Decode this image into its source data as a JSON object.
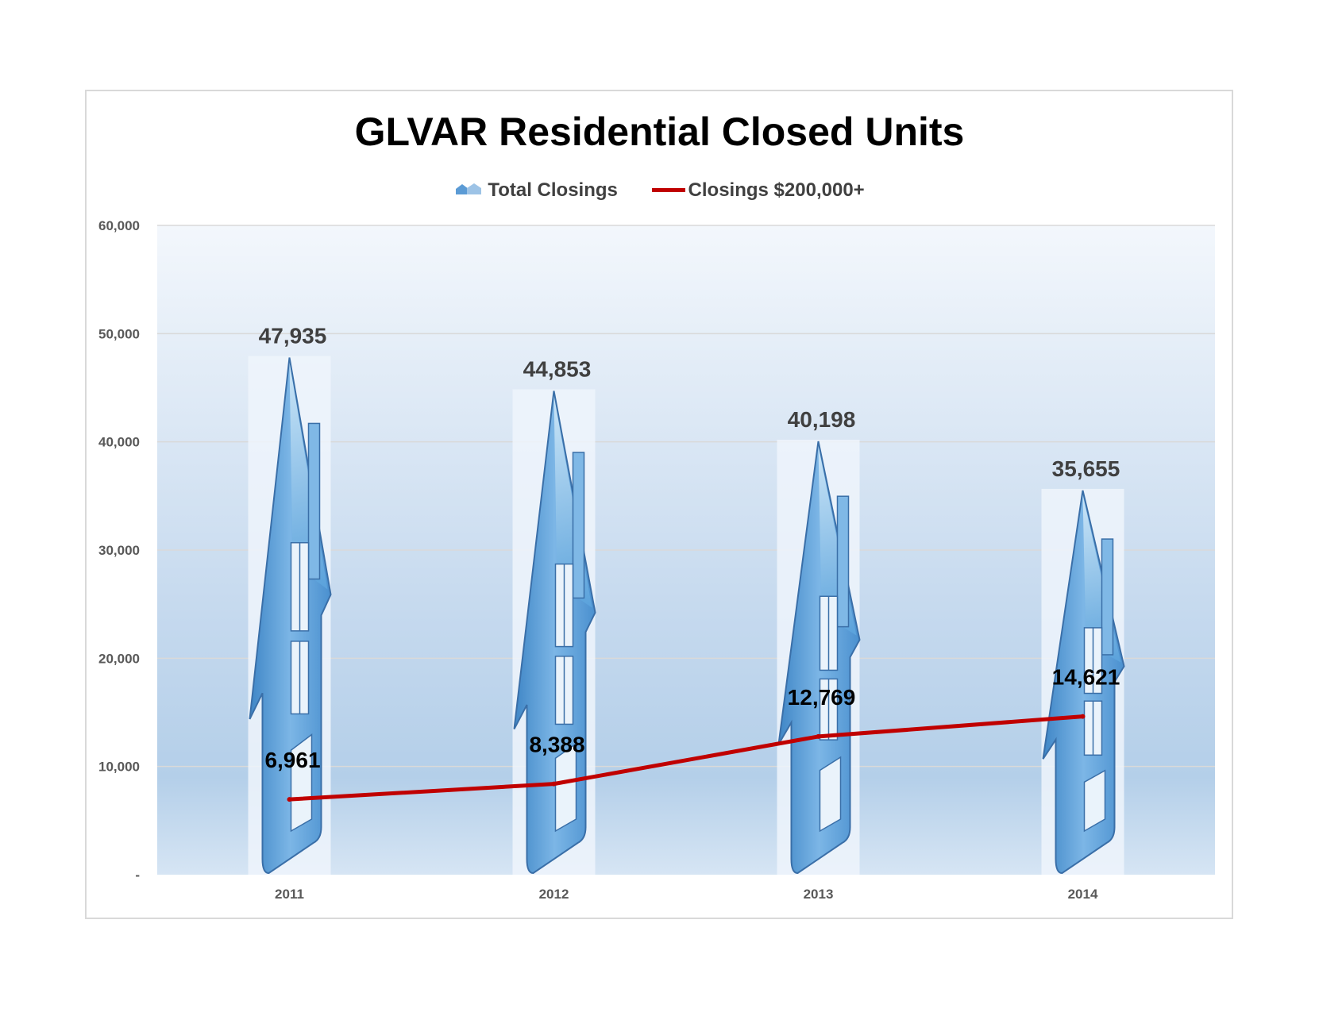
{
  "chart_data": {
    "type": "bar",
    "title": "GLVAR Residential Closed Units",
    "categories": [
      "2011",
      "2012",
      "2013",
      "2014"
    ],
    "series": [
      {
        "name": "Total Closings",
        "type": "bar",
        "values": [
          47935,
          44853,
          40198,
          35655
        ],
        "value_labels": [
          "47,935",
          "44,853",
          "40,198",
          "35,655"
        ]
      },
      {
        "name": "Closings $200,000+",
        "type": "line",
        "values": [
          6961,
          8388,
          12769,
          14621
        ],
        "value_labels": [
          "6,961",
          "8,388",
          "12,769",
          "14,621"
        ]
      }
    ],
    "xlabel": "",
    "ylabel": "",
    "ylim": [
      0,
      60000
    ],
    "yticks": [
      0,
      10000,
      20000,
      30000,
      40000,
      50000,
      60000
    ],
    "ytick_labels": [
      "-",
      "10,000",
      "20,000",
      "30,000",
      "40,000",
      "50,000",
      "60,000"
    ],
    "grid": true,
    "legend_position": "top",
    "colors": {
      "bar": "#5b9bd5",
      "line": "#c00000",
      "plot_bg_top": "#f3f7fc",
      "plot_bg_bottom": "#b7d0e9"
    }
  }
}
